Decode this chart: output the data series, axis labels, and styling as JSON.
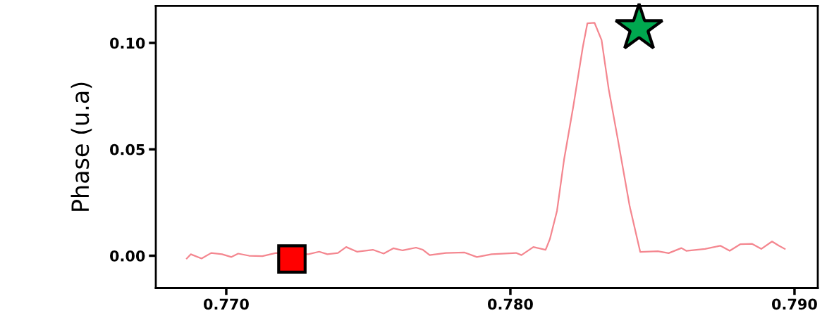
{
  "chart_data": {
    "type": "line",
    "ylabel": "Phase (u.a)",
    "xlim": [
      0.76752,
      0.79082
    ],
    "xticks": [
      {
        "value": 0.77,
        "label": "0.770"
      },
      {
        "value": 0.78,
        "label": "0.780"
      },
      {
        "value": 0.79,
        "label": "0.790"
      }
    ],
    "ylim": [
      -0.0152,
      0.1174
    ],
    "yticks": [
      {
        "value": 0.0,
        "label": "0.00"
      },
      {
        "value": 0.05,
        "label": "0.05"
      },
      {
        "value": 0.1,
        "label": "0.10"
      }
    ],
    "series": [
      {
        "color": "#f4868f",
        "marker": "none",
        "x": [
          0.76861,
          0.76875,
          0.76913,
          0.76947,
          0.76985,
          0.77018,
          0.77042,
          0.7708,
          0.77127,
          0.77175,
          0.77289,
          0.77327,
          0.77356,
          0.77393,
          0.77422,
          0.7746,
          0.77516,
          0.77554,
          0.77588,
          0.77621,
          0.77668,
          0.77692,
          0.77716,
          0.77773,
          0.77839,
          0.77882,
          0.77934,
          0.7802,
          0.78039,
          0.78081,
          0.78124,
          0.78139,
          0.78164,
          0.78189,
          0.78222,
          0.78255,
          0.78271,
          0.78296,
          0.78321,
          0.78346,
          0.78379,
          0.7842,
          0.78457,
          0.78519,
          0.78557,
          0.78602,
          0.78619,
          0.78685,
          0.78739,
          0.78772,
          0.78809,
          0.7885,
          0.78883,
          0.78921,
          0.78945,
          0.78966
        ],
        "values": [
          -0.0013,
          0.0007,
          -0.0013,
          0.0013,
          0.0007,
          -0.0006,
          0.001,
          0.0,
          -0.0002,
          0.0013,
          0.0007,
          0.0019,
          0.0007,
          0.0013,
          0.0041,
          0.0019,
          0.0028,
          0.001,
          0.0035,
          0.0025,
          0.0038,
          0.0028,
          0.0003,
          0.0013,
          0.0015,
          -0.0006,
          0.0007,
          0.0013,
          0.0003,
          0.0041,
          0.0028,
          0.0078,
          0.021,
          0.0452,
          0.0706,
          0.0981,
          0.1092,
          0.1095,
          0.1014,
          0.0783,
          0.0541,
          0.0232,
          0.0018,
          0.0021,
          0.0012,
          0.0036,
          0.0023,
          0.0032,
          0.0047,
          0.0023,
          0.0054,
          0.0056,
          0.0032,
          0.0067,
          0.0047,
          0.0032
        ]
      },
      {
        "type": "scatter",
        "color": "#ff0000",
        "marker": "square",
        "x": [
          0.77231
        ],
        "values": [
          -0.0015
        ]
      },
      {
        "type": "scatter",
        "color": "#00a84f",
        "marker": "star",
        "x": [
          0.78453
        ],
        "values": [
          0.1069
        ]
      }
    ]
  }
}
